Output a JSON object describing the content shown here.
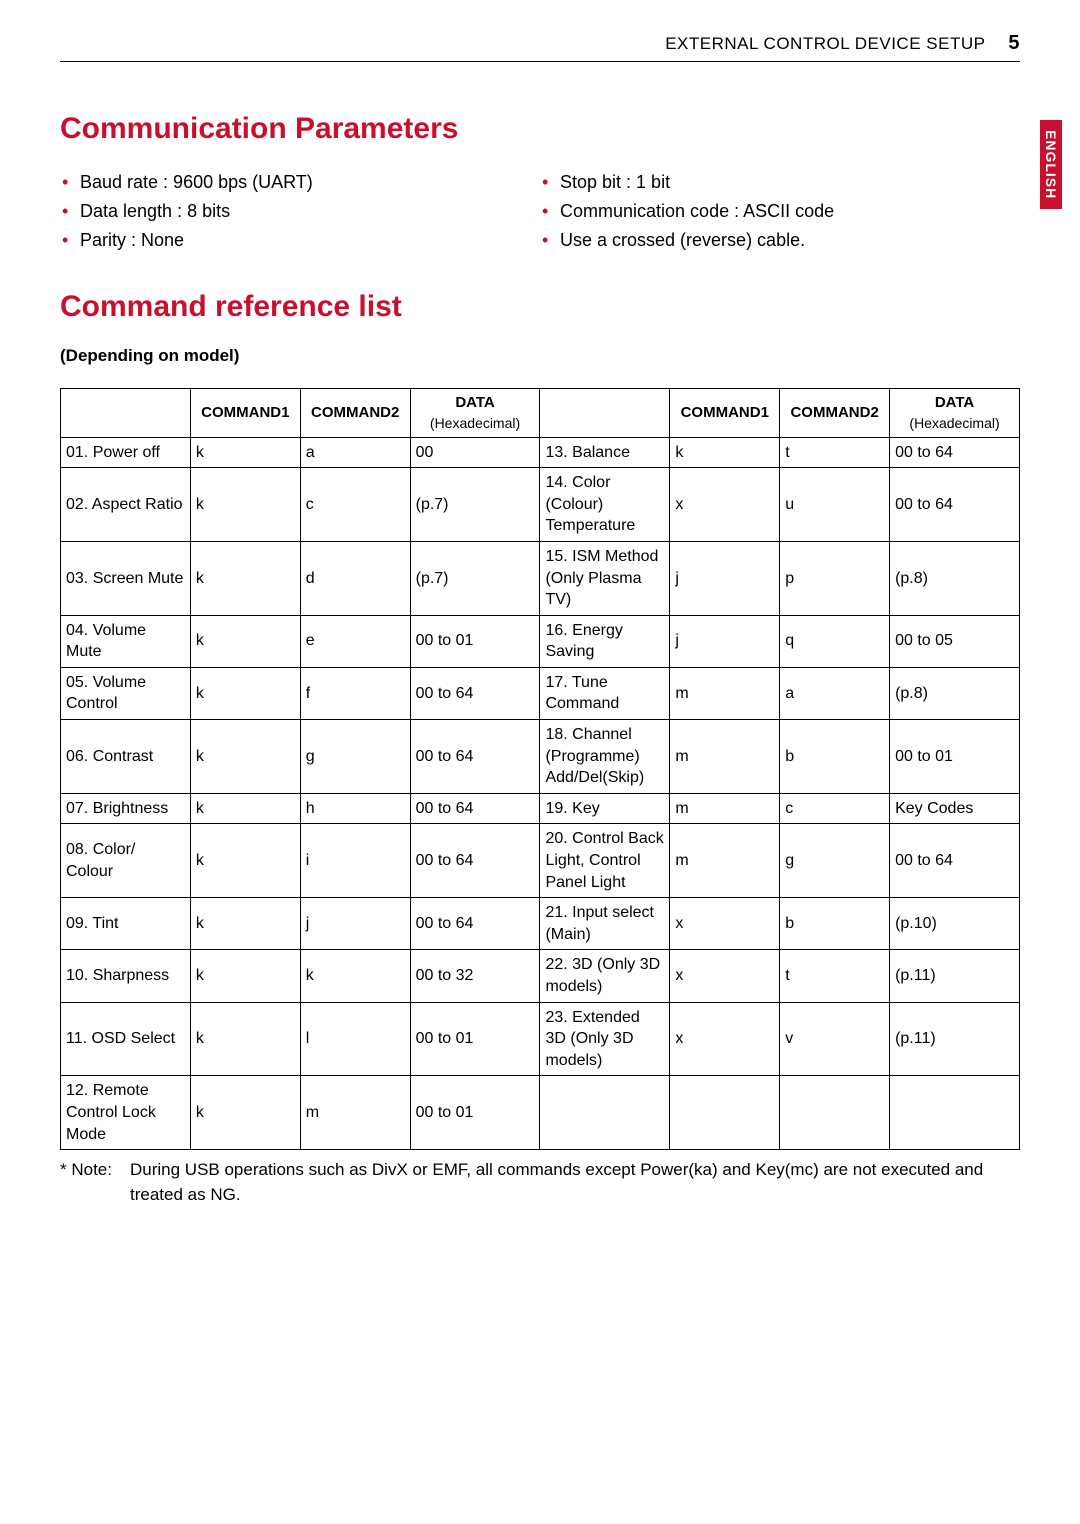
{
  "header": {
    "title": "EXTERNAL CONTROL DEVICE SETUP",
    "page_number": "5"
  },
  "side_label": "ENGLISH",
  "section1": {
    "title": "Communication Parameters",
    "left_items": [
      "Baud rate : 9600 bps (UART)",
      "Data length : 8 bits",
      "Parity : None"
    ],
    "right_items": [
      "Stop bit : 1 bit",
      "Communication code : ASCII code",
      "Use a crossed (reverse) cable."
    ]
  },
  "section2": {
    "title": "Command reference list",
    "subnote": "(Depending on model)"
  },
  "table": {
    "headers": {
      "name": "",
      "cmd1": "COMMAND1",
      "cmd2": "COMMAND2",
      "data_top": "DATA",
      "data_sub": "(Hexadecimal)"
    },
    "left_rows": [
      {
        "name": "01. Power off",
        "c1": "k",
        "c2": "a",
        "data": "00"
      },
      {
        "name": "02. Aspect Ratio",
        "c1": "k",
        "c2": "c",
        "data": "(p.7)"
      },
      {
        "name": "03. Screen Mute",
        "c1": "k",
        "c2": "d",
        "data": "(p.7)"
      },
      {
        "name": "04. Volume Mute",
        "c1": "k",
        "c2": "e",
        "data": "00 to 01"
      },
      {
        "name": "05. Volume Control",
        "c1": "k",
        "c2": "f",
        "data": "00 to 64"
      },
      {
        "name": "06. Contrast",
        "c1": "k",
        "c2": "g",
        "data": "00 to 64"
      },
      {
        "name": "07. Brightness",
        "c1": "k",
        "c2": "h",
        "data": "00 to 64"
      },
      {
        "name": "08. Color/ Colour",
        "c1": "k",
        "c2": "i",
        "data": "00 to 64"
      },
      {
        "name": "09. Tint",
        "c1": "k",
        "c2": "j",
        "data": "00 to 64"
      },
      {
        "name": "10. Sharpness",
        "c1": "k",
        "c2": "k",
        "data": "00 to 32"
      },
      {
        "name": "11. OSD Select",
        "c1": "k",
        "c2": "l",
        "data": "00 to 01"
      },
      {
        "name": "12. Remote Control Lock Mode",
        "c1": "k",
        "c2": "m",
        "data": "00 to 01"
      }
    ],
    "right_rows": [
      {
        "name": "13. Balance",
        "c1": "k",
        "c2": "t",
        "data": "00 to 64"
      },
      {
        "name": "14. Color (Colour) Temperature",
        "c1": "x",
        "c2": "u",
        "data": "00 to 64"
      },
      {
        "name": "15. ISM Method (Only Plasma TV)",
        "c1": "j",
        "c2": "p",
        "data": "(p.8)"
      },
      {
        "name": "16. Energy Saving",
        "c1": "j",
        "c2": "q",
        "data": "00 to 05"
      },
      {
        "name": "17. Tune Command",
        "c1": "m",
        "c2": "a",
        "data": "(p.8)"
      },
      {
        "name": "18. Channel (Programme) Add/Del(Skip)",
        "c1": "m",
        "c2": "b",
        "data": "00 to 01"
      },
      {
        "name": "19. Key",
        "c1": "m",
        "c2": "c",
        "data": "Key Codes"
      },
      {
        "name": "20. Control Back Light, Control Panel Light",
        "c1": "m",
        "c2": "g",
        "data": "00 to 64"
      },
      {
        "name": "21. Input select (Main)",
        "c1": "x",
        "c2": "b",
        "data": "(p.10)"
      },
      {
        "name": "22. 3D (Only 3D models)",
        "c1": "x",
        "c2": "t",
        "data": "(p.11)"
      },
      {
        "name": "23. Extended 3D (Only 3D models)",
        "c1": "x",
        "c2": "v",
        "data": "(p.11)"
      },
      {
        "name": "",
        "c1": "",
        "c2": "",
        "data": ""
      }
    ]
  },
  "footnote": {
    "label": "* Note:",
    "text": "During USB operations such as DivX or EMF, all commands except Power(ka) and Key(mc) are not executed and treated as NG."
  },
  "colors": {
    "accent": "#c8102e",
    "text": "#000000",
    "background": "#ffffff"
  }
}
